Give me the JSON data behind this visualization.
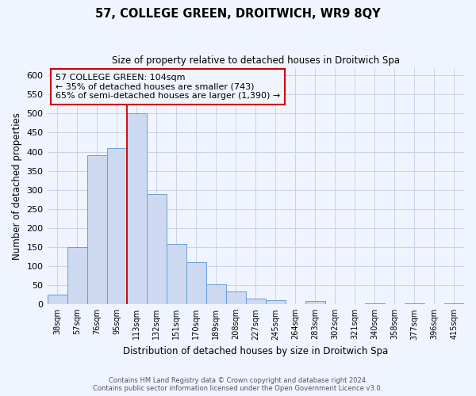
{
  "title": "57, COLLEGE GREEN, DROITWICH, WR9 8QY",
  "subtitle": "Size of property relative to detached houses in Droitwich Spa",
  "xlabel": "Distribution of detached houses by size in Droitwich Spa",
  "ylabel": "Number of detached properties",
  "footnote1": "Contains HM Land Registry data © Crown copyright and database right 2024.",
  "footnote2": "Contains public sector information licensed under the Open Government Licence v3.0.",
  "bin_labels": [
    "38sqm",
    "57sqm",
    "76sqm",
    "95sqm",
    "113sqm",
    "132sqm",
    "151sqm",
    "170sqm",
    "189sqm",
    "208sqm",
    "227sqm",
    "245sqm",
    "264sqm",
    "283sqm",
    "302sqm",
    "321sqm",
    "340sqm",
    "358sqm",
    "377sqm",
    "396sqm",
    "415sqm"
  ],
  "bar_heights": [
    25,
    150,
    390,
    410,
    500,
    290,
    158,
    110,
    53,
    33,
    15,
    10,
    0,
    8,
    0,
    0,
    3,
    0,
    3,
    0,
    2
  ],
  "bar_color": "#ccd9f0",
  "bar_edge_color": "#6b9fd4",
  "vline_color": "#cc0000",
  "annotation_title": "57 COLLEGE GREEN: 104sqm",
  "annotation_line1": "← 35% of detached houses are smaller (743)",
  "annotation_line2": "65% of semi-detached houses are larger (1,390) →",
  "annotation_box_edgecolor": "#cc0000",
  "ylim": [
    0,
    620
  ],
  "yticks": [
    0,
    50,
    100,
    150,
    200,
    250,
    300,
    350,
    400,
    450,
    500,
    550,
    600
  ],
  "bg_color": "#f0f4ff",
  "grid_color": "#c8d4e8",
  "vline_x_index": 4
}
